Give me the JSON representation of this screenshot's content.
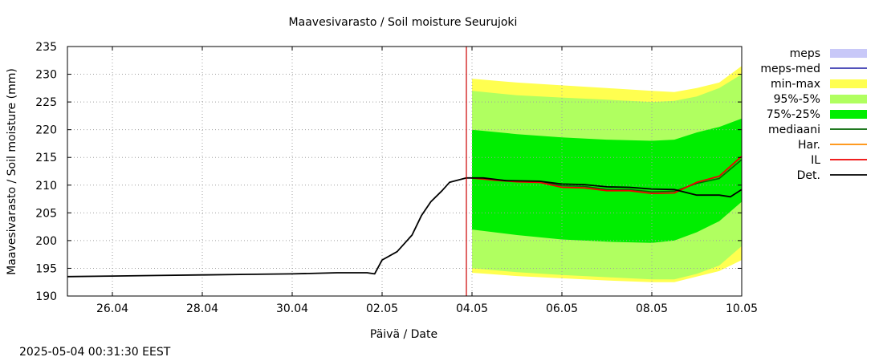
{
  "chart_data": {
    "type": "area",
    "title": "Maavesivarasto / Soil moisture   Seurujoki",
    "xlabel": "Päivä / Date",
    "ylabel": "Maavesivarasto / Soil moisture (mm)",
    "timestamp": "2025-05-04  00:31:30 EEST",
    "xlim": [
      "2025-04-25",
      "2025-05-10"
    ],
    "ylim": [
      190,
      235
    ],
    "yticks": [
      190,
      195,
      200,
      205,
      210,
      215,
      220,
      225,
      230,
      235
    ],
    "xticks": [
      {
        "date": "2025-04-26",
        "label": "26.04"
      },
      {
        "date": "2025-04-28",
        "label": "28.04"
      },
      {
        "date": "2025-04-30",
        "label": "30.04"
      },
      {
        "date": "2025-05-02",
        "label": "02.05"
      },
      {
        "date": "2025-05-04",
        "label": "04.05"
      },
      {
        "date": "2025-05-06",
        "label": "06.05"
      },
      {
        "date": "2025-05-08",
        "label": "08.05"
      },
      {
        "date": "2025-05-10",
        "label": "10.05"
      }
    ],
    "grid": true,
    "legend_position": "right",
    "forecast_start": "2025-05-03T21:00",
    "colors": {
      "meps": "#c8c8f8",
      "meps_med": "#3a3ab0",
      "minmax": "#ffff50",
      "p95_5": "#b0ff60",
      "p75_25": "#00ee00",
      "mediaani": "#006400",
      "har": "#ff8c00",
      "il": "#ee0000",
      "det": "#000000",
      "now_line": "#cc0000"
    },
    "legend": [
      {
        "key": "meps",
        "label": "meps",
        "kind": "box"
      },
      {
        "key": "meps_med",
        "label": "meps-med",
        "kind": "line"
      },
      {
        "key": "minmax",
        "label": "min-max",
        "kind": "box"
      },
      {
        "key": "p95_5",
        "label": "95%-5%",
        "kind": "box"
      },
      {
        "key": "p75_25",
        "label": "75%-25%",
        "kind": "box"
      },
      {
        "key": "mediaani",
        "label": "mediaani",
        "kind": "line"
      },
      {
        "key": "har",
        "label": "Har.",
        "kind": "line"
      },
      {
        "key": "il",
        "label": "IL",
        "kind": "line"
      },
      {
        "key": "det",
        "label": "Det.",
        "kind": "line"
      }
    ],
    "bands": {
      "x": [
        "2025-05-04T00:00",
        "2025-05-05T00:00",
        "2025-05-06T00:00",
        "2025-05-07T00:00",
        "2025-05-08T00:00",
        "2025-05-08T12:00",
        "2025-05-09T00:00",
        "2025-05-09T12:00",
        "2025-05-10T00:00"
      ],
      "minmax": {
        "lower": [
          194.2,
          193.6,
          193.2,
          192.8,
          192.5,
          192.5,
          193.5,
          194.5,
          196.5
        ],
        "upper": [
          229.2,
          228.5,
          228.0,
          227.5,
          227.0,
          226.8,
          227.5,
          228.5,
          231.5
        ]
      },
      "p95_5": {
        "lower": [
          195.0,
          194.3,
          193.8,
          193.4,
          193.0,
          193.0,
          194.0,
          195.5,
          199.0
        ],
        "upper": [
          227.0,
          226.2,
          225.8,
          225.4,
          225.0,
          225.2,
          226.0,
          227.5,
          230.0
        ]
      },
      "p75_25": {
        "lower": [
          202.0,
          201.0,
          200.2,
          199.8,
          199.6,
          200.0,
          201.5,
          203.5,
          207.0
        ],
        "upper": [
          220.0,
          219.2,
          218.6,
          218.2,
          218.0,
          218.2,
          219.5,
          220.5,
          222.0
        ]
      }
    },
    "series": [
      {
        "key": "det",
        "name": "Det.",
        "x": [
          "2025-04-25T00:00",
          "2025-04-26T00:00",
          "2025-04-27T00:00",
          "2025-04-28T00:00",
          "2025-04-29T00:00",
          "2025-04-30T00:00",
          "2025-05-01T00:00",
          "2025-05-01T16:00",
          "2025-05-01T20:00",
          "2025-05-02T00:00",
          "2025-05-02T08:00",
          "2025-05-02T16:00",
          "2025-05-02T21:00",
          "2025-05-03T02:00",
          "2025-05-03T08:00",
          "2025-05-03T12:00",
          "2025-05-03T21:00",
          "2025-05-04T06:00",
          "2025-05-04T18:00",
          "2025-05-05T12:00",
          "2025-05-06T00:00",
          "2025-05-06T12:00",
          "2025-05-07T00:00",
          "2025-05-07T12:00",
          "2025-05-08T00:00",
          "2025-05-08T12:00",
          "2025-05-08T18:00",
          "2025-05-09T00:00",
          "2025-05-09T12:00",
          "2025-05-09T18:00",
          "2025-05-10T00:00"
        ],
        "y": [
          193.5,
          193.6,
          193.7,
          193.8,
          193.9,
          194.0,
          194.2,
          194.2,
          194.0,
          196.5,
          198.0,
          201.0,
          204.5,
          207.0,
          209.0,
          210.5,
          211.3,
          211.3,
          210.8,
          210.7,
          210.2,
          210.1,
          209.7,
          209.6,
          209.3,
          209.2,
          208.7,
          208.2,
          208.2,
          207.9,
          209.2
        ]
      },
      {
        "key": "il",
        "name": "IL",
        "x": [
          "2025-05-04T00:00",
          "2025-05-04T12:00",
          "2025-05-05T00:00",
          "2025-05-05T12:00",
          "2025-05-06T00:00",
          "2025-05-06T12:00",
          "2025-05-07T00:00",
          "2025-05-07T12:00",
          "2025-05-08T00:00",
          "2025-05-08T12:00",
          "2025-05-09T00:00",
          "2025-05-09T12:00",
          "2025-05-10T00:00"
        ],
        "y": [
          211.3,
          210.9,
          210.6,
          210.5,
          209.6,
          209.5,
          209.0,
          209.0,
          208.5,
          208.6,
          210.5,
          211.6,
          215.2
        ]
      },
      {
        "key": "mediaani",
        "name": "mediaani",
        "x": [
          "2025-05-04T00:00",
          "2025-05-04T12:00",
          "2025-05-05T00:00",
          "2025-05-05T12:00",
          "2025-05-06T00:00",
          "2025-05-06T12:00",
          "2025-05-07T00:00",
          "2025-05-07T12:00",
          "2025-05-08T00:00",
          "2025-05-08T12:00",
          "2025-05-09T00:00",
          "2025-05-09T12:00",
          "2025-05-10T00:00"
        ],
        "y": [
          211.3,
          211.0,
          210.7,
          210.6,
          209.9,
          209.8,
          209.2,
          209.2,
          208.8,
          208.9,
          210.3,
          211.2,
          214.6
        ]
      }
    ]
  }
}
